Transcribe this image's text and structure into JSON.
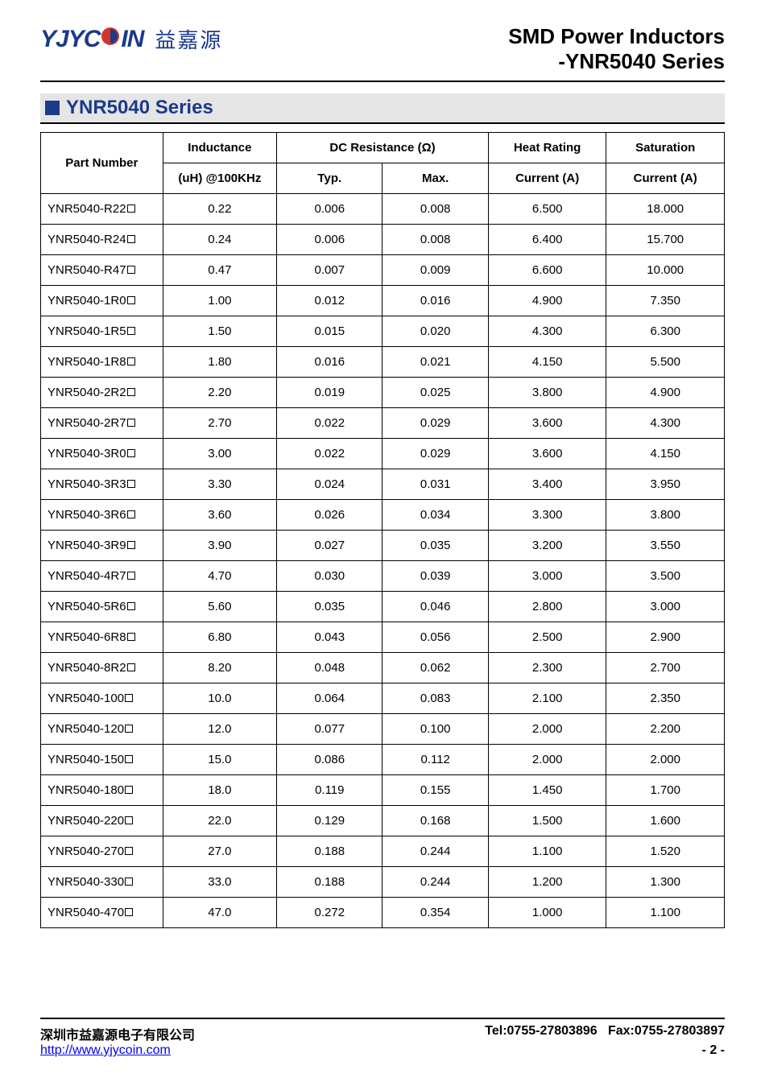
{
  "logo": {
    "brand_prefix": "YJYC",
    "brand_suffix": "IN",
    "cn": "益嘉源",
    "color": "#1a3a8a"
  },
  "title": {
    "line1": "SMD Power Inductors",
    "line2": "-YNR5040 Series"
  },
  "section": {
    "title": "YNR5040 Series",
    "box_color": "#1a3a8a"
  },
  "table": {
    "headers": {
      "part_number": "Part Number",
      "inductance": "Inductance",
      "inductance_sub": "(uH) @100KHz",
      "dc_resistance": "DC Resistance (Ω)",
      "typ": "Typ.",
      "max": "Max.",
      "heat": "Heat Rating",
      "heat_sub": "Current (A)",
      "sat": "Saturation",
      "sat_sub": "Current (A)"
    },
    "rows": [
      {
        "pn": "YNR5040-R22",
        "ind": "0.22",
        "typ": "0.006",
        "max": "0.008",
        "heat": "6.500",
        "sat": "18.000"
      },
      {
        "pn": "YNR5040-R24",
        "ind": "0.24",
        "typ": "0.006",
        "max": "0.008",
        "heat": "6.400",
        "sat": "15.700"
      },
      {
        "pn": "YNR5040-R47",
        "ind": "0.47",
        "typ": "0.007",
        "max": "0.009",
        "heat": "6.600",
        "sat": "10.000"
      },
      {
        "pn": "YNR5040-1R0",
        "ind": "1.00",
        "typ": "0.012",
        "max": "0.016",
        "heat": "4.900",
        "sat": "7.350"
      },
      {
        "pn": "YNR5040-1R5",
        "ind": "1.50",
        "typ": "0.015",
        "max": "0.020",
        "heat": "4.300",
        "sat": "6.300"
      },
      {
        "pn": "YNR5040-1R8",
        "ind": "1.80",
        "typ": "0.016",
        "max": "0.021",
        "heat": "4.150",
        "sat": "5.500"
      },
      {
        "pn": "YNR5040-2R2",
        "ind": "2.20",
        "typ": "0.019",
        "max": "0.025",
        "heat": "3.800",
        "sat": "4.900"
      },
      {
        "pn": "YNR5040-2R7",
        "ind": "2.70",
        "typ": "0.022",
        "max": "0.029",
        "heat": "3.600",
        "sat": "4.300"
      },
      {
        "pn": "YNR5040-3R0",
        "ind": "3.00",
        "typ": "0.022",
        "max": "0.029",
        "heat": "3.600",
        "sat": "4.150"
      },
      {
        "pn": "YNR5040-3R3",
        "ind": "3.30",
        "typ": "0.024",
        "max": "0.031",
        "heat": "3.400",
        "sat": "3.950"
      },
      {
        "pn": "YNR5040-3R6",
        "ind": "3.60",
        "typ": "0.026",
        "max": "0.034",
        "heat": "3.300",
        "sat": "3.800"
      },
      {
        "pn": "YNR5040-3R9",
        "ind": "3.90",
        "typ": "0.027",
        "max": "0.035",
        "heat": "3.200",
        "sat": "3.550"
      },
      {
        "pn": "YNR5040-4R7",
        "ind": "4.70",
        "typ": "0.030",
        "max": "0.039",
        "heat": "3.000",
        "sat": "3.500"
      },
      {
        "pn": "YNR5040-5R6",
        "ind": "5.60",
        "typ": "0.035",
        "max": "0.046",
        "heat": "2.800",
        "sat": "3.000"
      },
      {
        "pn": "YNR5040-6R8",
        "ind": "6.80",
        "typ": "0.043",
        "max": "0.056",
        "heat": "2.500",
        "sat": "2.900"
      },
      {
        "pn": "YNR5040-8R2",
        "ind": "8.20",
        "typ": "0.048",
        "max": "0.062",
        "heat": "2.300",
        "sat": "2.700"
      },
      {
        "pn": "YNR5040-100",
        "ind": "10.0",
        "typ": "0.064",
        "max": "0.083",
        "heat": "2.100",
        "sat": "2.350"
      },
      {
        "pn": "YNR5040-120",
        "ind": "12.0",
        "typ": "0.077",
        "max": "0.100",
        "heat": "2.000",
        "sat": "2.200"
      },
      {
        "pn": "YNR5040-150",
        "ind": "15.0",
        "typ": "0.086",
        "max": "0.112",
        "heat": "2.000",
        "sat": "2.000"
      },
      {
        "pn": "YNR5040-180",
        "ind": "18.0",
        "typ": "0.119",
        "max": "0.155",
        "heat": "1.450",
        "sat": "1.700"
      },
      {
        "pn": "YNR5040-220",
        "ind": "22.0",
        "typ": "0.129",
        "max": "0.168",
        "heat": "1.500",
        "sat": "1.600"
      },
      {
        "pn": "YNR5040-270",
        "ind": "27.0",
        "typ": "0.188",
        "max": "0.244",
        "heat": "1.100",
        "sat": "1.520"
      },
      {
        "pn": "YNR5040-330",
        "ind": "33.0",
        "typ": "0.188",
        "max": "0.244",
        "heat": "1.200",
        "sat": "1.300"
      },
      {
        "pn": "YNR5040-470",
        "ind": "47.0",
        "typ": "0.272",
        "max": "0.354",
        "heat": "1.000",
        "sat": "1.100"
      }
    ]
  },
  "footer": {
    "company": "深圳市益嘉源电子有限公司",
    "tel": "Tel:0755-27803896",
    "fax": "Fax:0755-27803897",
    "url": "http://www.yjycoin.com",
    "page": "- 2 -"
  }
}
